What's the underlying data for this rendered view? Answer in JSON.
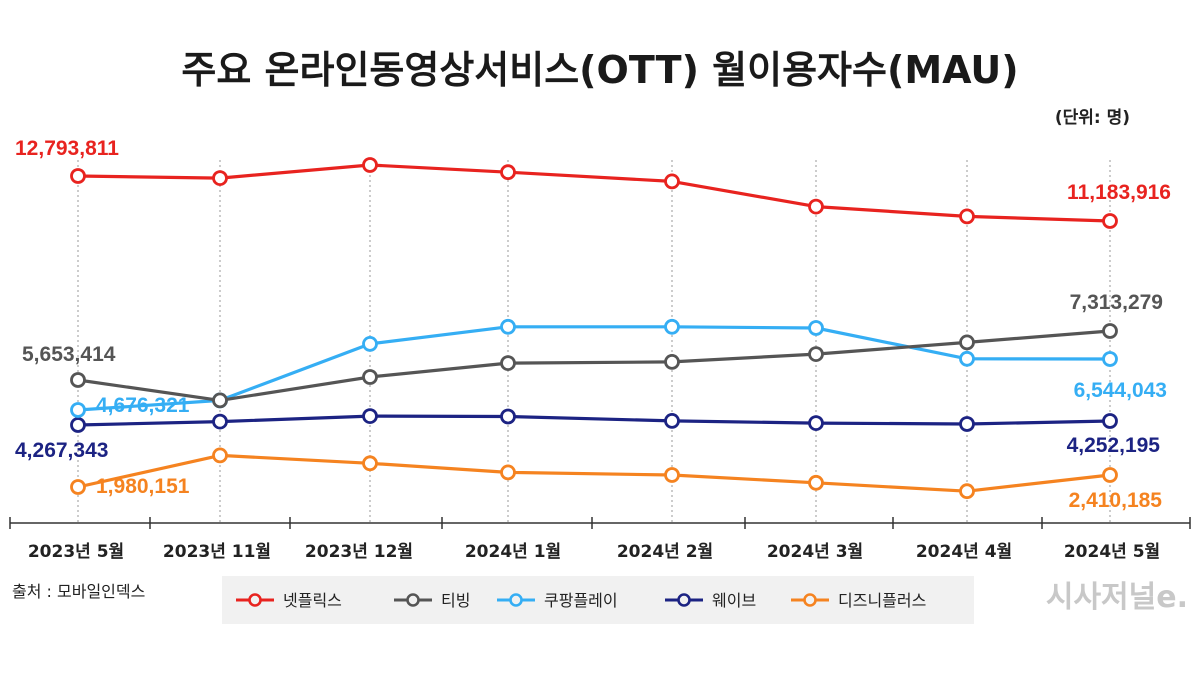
{
  "chart_data": {
    "type": "line",
    "title": "주요 온라인동영상서비스(OTT) 월이용자수(MAU)",
    "unit": "(단위: 명)",
    "categories": [
      "2023년 5월",
      "2023년 11월",
      "2023년 12월",
      "2024년 1월",
      "2024년 2월",
      "2024년 3월",
      "2024년 4월",
      "2024년 5월"
    ],
    "series": [
      {
        "name": "넷플릭스",
        "color": "#e8231f",
        "values": [
          12793811,
          12720000,
          13100000,
          12900000,
          12600000,
          11700000,
          11350000,
          11183916
        ],
        "start_label": "12,793,811",
        "end_label": "11,183,916"
      },
      {
        "name": "티빙",
        "color": "#555555",
        "values": [
          5653414,
          4990000,
          5780000,
          6370000,
          6420000,
          6680000,
          7000000,
          7313279
        ],
        "start_label": "5,653,414",
        "end_label": "7,313,279"
      },
      {
        "name": "쿠팡플레이",
        "color": "#35aef4",
        "values": [
          4676321,
          4990000,
          6960000,
          7460000,
          7460000,
          7420000,
          6550000,
          6544043
        ],
        "start_label": "4,676,321",
        "end_label": "6,544,043"
      },
      {
        "name": "웨이브",
        "color": "#1c2383",
        "values": [
          4267343,
          4360000,
          4510000,
          4500000,
          4380000,
          4320000,
          4150000,
          4252195
        ],
        "start_label": "4,267,343",
        "end_label": "4,252,195"
      },
      {
        "name": "디즈니플러스",
        "color": "#f58320",
        "values": [
          1980151,
          3080000,
          2810000,
          2500000,
          2410000,
          2130000,
          1830000,
          2410185
        ],
        "start_label": "1,980,151",
        "end_label": "2,410,185"
      }
    ],
    "legend_position": "bottom",
    "grid": "vertical dotted"
  },
  "source": "출처 : 모바일인덱스",
  "brand": "시사저널e."
}
